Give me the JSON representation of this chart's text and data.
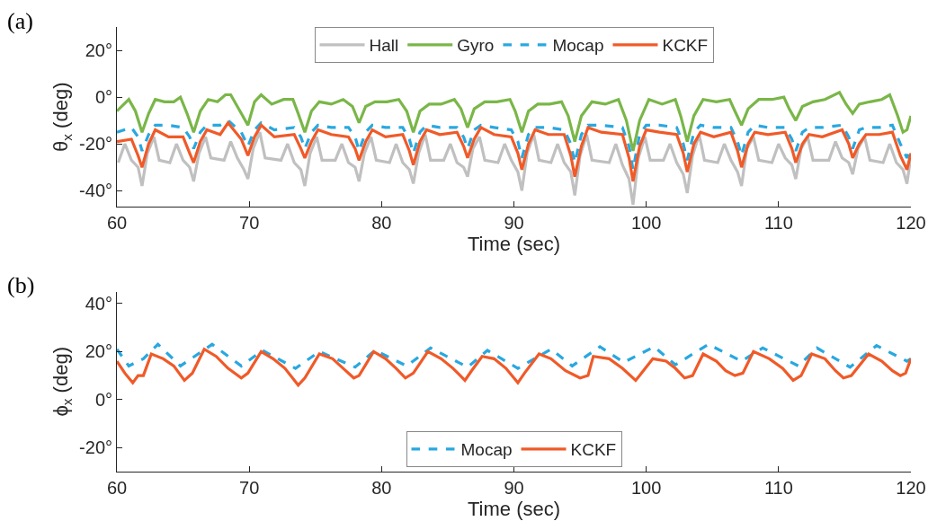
{
  "chart_data": [
    {
      "type": "line",
      "annotations": [
        "(a)"
      ],
      "xlabel": "Time (sec)",
      "ylabel": "θ$_{x}$ (deg)",
      "xlim": [
        60,
        120
      ],
      "ylim": [
        -47,
        30
      ],
      "xticks": [
        60,
        70,
        80,
        90,
        100,
        110,
        120
      ],
      "yticks": [
        {
          "value": -40,
          "label": "-40°"
        },
        {
          "value": -20,
          "label": "-20°"
        },
        {
          "value": 0,
          "label": "0°"
        },
        {
          "value": 20,
          "label": "20°"
        }
      ],
      "legend": "top",
      "marker": "none",
      "series": [
        {
          "name": "Hall",
          "color": "#c0c0c0",
          "line_style": "solid",
          "x": [
            60.1,
            60.6,
            61.1,
            61.6,
            61.9,
            62.3,
            62.8,
            63.2,
            64.0,
            64.5,
            65.0,
            65.5,
            65.8,
            66.2,
            66.7,
            67.1,
            68.1,
            68.6,
            69.1,
            69.6,
            69.9,
            70.3,
            70.8,
            71.2,
            72.4,
            72.9,
            73.4,
            73.9,
            74.2,
            74.6,
            75.1,
            75.5,
            76.5,
            77.0,
            77.5,
            78.0,
            78.3,
            78.7,
            79.2,
            79.6,
            80.6,
            81.1,
            81.6,
            82.1,
            82.4,
            82.8,
            83.3,
            83.7,
            84.7,
            85.2,
            85.7,
            86.2,
            86.5,
            86.9,
            87.4,
            87.8,
            88.8,
            89.3,
            89.8,
            90.3,
            90.6,
            91.0,
            91.5,
            91.9,
            92.8,
            93.3,
            93.8,
            94.3,
            94.6,
            95.0,
            95.5,
            95.9,
            97.2,
            97.7,
            98.2,
            98.7,
            99.0,
            99.4,
            99.9,
            100.3,
            101.3,
            101.8,
            102.3,
            102.8,
            103.1,
            103.5,
            104.0,
            104.4,
            105.4,
            105.9,
            106.4,
            106.9,
            107.2,
            107.6,
            108.1,
            108.5,
            109.5,
            110.0,
            110.5,
            111.0,
            111.3,
            111.7,
            112.2,
            112.6,
            113.8,
            114.3,
            114.8,
            115.3,
            115.6,
            116.0,
            116.5,
            116.9,
            117.9,
            118.4,
            118.9,
            119.4,
            119.7,
            120.0
          ],
          "values": [
            -28,
            -20,
            -27,
            -30,
            -38,
            -24,
            -17,
            -27,
            -28,
            -20,
            -27,
            -30,
            -36,
            -24,
            -17,
            -26,
            -27,
            -19,
            -26,
            -31,
            -35,
            -22,
            -15,
            -26,
            -27,
            -20,
            -28,
            -31,
            -38,
            -24,
            -17,
            -27,
            -27,
            -20,
            -28,
            -30,
            -36,
            -24,
            -17,
            -27,
            -28,
            -20,
            -28,
            -31,
            -37,
            -24,
            -16,
            -27,
            -27,
            -20,
            -28,
            -30,
            -34,
            -22,
            -17,
            -27,
            -28,
            -20,
            -27,
            -32,
            -40,
            -24,
            -16,
            -27,
            -28,
            -20,
            -28,
            -32,
            -42,
            -25,
            -16,
            -27,
            -28,
            -20,
            -29,
            -35,
            -46,
            -26,
            -17,
            -27,
            -27,
            -20,
            -28,
            -33,
            -41,
            -25,
            -16,
            -27,
            -28,
            -20,
            -27,
            -32,
            -38,
            -22,
            -17,
            -27,
            -28,
            -20,
            -26,
            -29,
            -35,
            -22,
            -17,
            -27,
            -27,
            -19,
            -26,
            -28,
            -33,
            -22,
            -17,
            -27,
            -28,
            -20,
            -28,
            -31,
            -37,
            -25
          ]
        },
        {
          "name": "Gyro",
          "color": "#7ab648",
          "line_style": "solid",
          "x": [
            60,
            60.9,
            61.4,
            61.9,
            62.4,
            62.9,
            63.6,
            64.3,
            64.8,
            65.3,
            65.8,
            66.3,
            66.9,
            67.6,
            68.2,
            68.6,
            69.4,
            69.9,
            70.4,
            70.9,
            71.7,
            72.6,
            73.3,
            73.7,
            74.2,
            74.7,
            75.3,
            76.2,
            77.1,
            77.8,
            78.3,
            78.8,
            79.5,
            80.4,
            81.3,
            81.9,
            82.4,
            82.9,
            83.6,
            84.5,
            85.5,
            86.0,
            86.5,
            87.0,
            87.8,
            88.7,
            89.7,
            90.1,
            90.6,
            91.1,
            91.8,
            92.7,
            93.6,
            94.1,
            94.6,
            95.1,
            95.9,
            96.9,
            97.9,
            98.5,
            99.0,
            99.5,
            100.2,
            101.2,
            102.2,
            102.6,
            103.1,
            103.6,
            104.3,
            105.3,
            106.3,
            106.7,
            107.2,
            107.7,
            108.5,
            109.5,
            110.4,
            110.8,
            111.3,
            111.8,
            112.6,
            113.5,
            114.6,
            115.1,
            115.6,
            116.1,
            116.9,
            117.8,
            118.4,
            119.0,
            119.4,
            119.7,
            120.0
          ],
          "values": [
            -6,
            -1,
            -6,
            -15,
            -7,
            -1,
            -2,
            -2,
            0,
            -7,
            -15,
            -6,
            -1,
            -2,
            1,
            1,
            -7,
            -12,
            -2,
            1,
            -3,
            -1,
            -1,
            -7,
            -15,
            -6,
            -2,
            -3,
            -1,
            -4,
            -11,
            -4,
            -2,
            -2,
            -1,
            -6,
            -15,
            -6,
            -3,
            -3,
            -1,
            -5,
            -13,
            -5,
            -2,
            -2,
            -1,
            -6,
            -15,
            -6,
            -3,
            -3,
            -2,
            -8,
            -19,
            -8,
            -2,
            -3,
            -1,
            -10,
            -23,
            -10,
            -1,
            -3,
            -1,
            -8,
            -19,
            -8,
            -1,
            -2,
            -1,
            -6,
            -12,
            -5,
            -1,
            -1,
            0,
            -5,
            -10,
            -4,
            -2,
            -1,
            2,
            -3,
            -7,
            -3,
            -2,
            -1,
            1,
            -8,
            -15,
            -14,
            -8
          ]
        },
        {
          "name": "Mocap",
          "color": "#29a8e0",
          "line_style": "dashed",
          "x": [
            60,
            61.1,
            61.6,
            61.9,
            62.4,
            62.9,
            63.9,
            65.0,
            65.5,
            65.8,
            66.3,
            66.8,
            67.8,
            68.4,
            69.4,
            69.9,
            70.4,
            70.9,
            71.9,
            73.4,
            73.9,
            74.2,
            74.7,
            75.2,
            76.2,
            77.5,
            78.0,
            78.3,
            78.8,
            79.3,
            80.3,
            81.6,
            82.1,
            82.4,
            82.9,
            83.4,
            84.4,
            85.7,
            86.2,
            86.5,
            87.0,
            87.5,
            88.5,
            89.8,
            90.3,
            90.6,
            91.1,
            91.6,
            92.6,
            93.8,
            94.3,
            94.6,
            95.1,
            95.6,
            96.6,
            98.2,
            98.7,
            99.0,
            99.5,
            100.0,
            101.0,
            102.3,
            102.8,
            103.1,
            103.6,
            104.1,
            105.1,
            106.4,
            106.9,
            107.2,
            107.7,
            108.2,
            109.2,
            110.5,
            111.0,
            111.3,
            111.8,
            112.3,
            113.3,
            114.8,
            115.3,
            115.6,
            116.1,
            116.6,
            117.6,
            118.6,
            119.2,
            119.7,
            120.0
          ],
          "values": [
            -15,
            -13,
            -17,
            -23,
            -16,
            -12,
            -12,
            -13,
            -17,
            -22,
            -15,
            -12,
            -12,
            -10,
            -15,
            -21,
            -14,
            -11,
            -14,
            -13,
            -17,
            -22,
            -15,
            -12,
            -13,
            -13,
            -17,
            -23,
            -15,
            -12,
            -13,
            -13,
            -18,
            -24,
            -15,
            -12,
            -13,
            -13,
            -17,
            -22,
            -14,
            -12,
            -13,
            -14,
            -19,
            -26,
            -16,
            -13,
            -13,
            -14,
            -20,
            -28,
            -16,
            -12,
            -12,
            -13,
            -21,
            -31,
            -16,
            -12,
            -12,
            -13,
            -20,
            -27,
            -15,
            -12,
            -13,
            -13,
            -19,
            -25,
            -15,
            -12,
            -13,
            -13,
            -18,
            -23,
            -15,
            -13,
            -13,
            -12,
            -17,
            -22,
            -14,
            -13,
            -13,
            -12,
            -20,
            -26,
            -22
          ]
        },
        {
          "name": "KCKF",
          "color": "#f05a28",
          "line_style": "solid",
          "x": [
            60,
            61.1,
            61.6,
            61.9,
            62.4,
            62.9,
            63.9,
            65.0,
            65.5,
            65.8,
            66.3,
            66.8,
            67.8,
            68.4,
            69.4,
            69.9,
            70.4,
            70.9,
            71.9,
            73.4,
            73.9,
            74.2,
            74.7,
            75.2,
            76.2,
            77.5,
            78.0,
            78.3,
            78.8,
            79.3,
            80.3,
            81.6,
            82.1,
            82.4,
            82.9,
            83.4,
            84.4,
            85.7,
            86.2,
            86.5,
            87.0,
            87.5,
            88.5,
            89.8,
            90.3,
            90.6,
            91.1,
            91.6,
            92.6,
            93.8,
            94.3,
            94.6,
            95.1,
            95.6,
            96.6,
            98.2,
            98.7,
            99.0,
            99.5,
            100.0,
            101.0,
            102.3,
            102.8,
            103.1,
            103.6,
            104.1,
            105.1,
            106.4,
            106.9,
            107.2,
            107.7,
            108.2,
            109.2,
            110.5,
            111.0,
            111.3,
            111.8,
            112.3,
            113.3,
            114.8,
            115.3,
            115.6,
            116.1,
            116.6,
            117.6,
            118.6,
            119.2,
            119.7,
            120.0
          ],
          "values": [
            -19,
            -18,
            -25,
            -30,
            -20,
            -14,
            -17,
            -17,
            -24,
            -28,
            -19,
            -14,
            -16,
            -11,
            -18,
            -25,
            -17,
            -12,
            -17,
            -16,
            -22,
            -26,
            -19,
            -14,
            -16,
            -17,
            -22,
            -27,
            -19,
            -14,
            -17,
            -16,
            -23,
            -29,
            -19,
            -14,
            -16,
            -15,
            -21,
            -26,
            -18,
            -13,
            -16,
            -17,
            -24,
            -31,
            -20,
            -14,
            -16,
            -16,
            -25,
            -34,
            -21,
            -13,
            -15,
            -16,
            -26,
            -36,
            -21,
            -14,
            -15,
            -16,
            -24,
            -32,
            -20,
            -15,
            -17,
            -15,
            -23,
            -30,
            -20,
            -15,
            -16,
            -15,
            -22,
            -28,
            -20,
            -16,
            -17,
            -14,
            -20,
            -26,
            -20,
            -16,
            -16,
            -15,
            -25,
            -31,
            -24
          ]
        }
      ]
    },
    {
      "type": "line",
      "annotations": [
        "(b)"
      ],
      "xlabel": "Time (sec)",
      "ylabel": "ϕ$_{x}$ (deg)",
      "xlim": [
        60,
        120
      ],
      "ylim": [
        -30,
        45
      ],
      "xticks": [
        60,
        70,
        80,
        90,
        100,
        110,
        120
      ],
      "yticks": [
        {
          "value": -20,
          "label": "-20°"
        },
        {
          "value": 0,
          "label": "0°"
        },
        {
          "value": 20,
          "label": "20°"
        },
        {
          "value": 40,
          "label": "40°"
        }
      ],
      "legend": "bottom",
      "marker": "none",
      "series": [
        {
          "name": "Mocap",
          "color": "#29a8e0",
          "line_style": "dashed",
          "x": [
            60,
            60.9,
            62.0,
            63.1,
            64.8,
            67.2,
            69.4,
            71.0,
            73.5,
            75.3,
            78.0,
            79.5,
            81.9,
            83.7,
            86.5,
            88.0,
            90.3,
            92.8,
            94.4,
            96.5,
            98.3,
            100.6,
            102.2,
            104.7,
            107.2,
            108.8,
            111.5,
            112.9,
            115.4,
            117.4,
            119.7,
            120.0
          ],
          "values": [
            21,
            14,
            17,
            23,
            14,
            23,
            14,
            20.5,
            13,
            20,
            13.5,
            20.5,
            14,
            21.5,
            13.5,
            20.5,
            13,
            21,
            14,
            22,
            15.5,
            22,
            14.5,
            23,
            16,
            21.5,
            14,
            21.5,
            13.5,
            22.5,
            16,
            17
          ]
        },
        {
          "name": "KCKF",
          "color": "#f05a28",
          "line_style": "solid",
          "x": [
            60,
            60.6,
            61.2,
            61.6,
            62.0,
            62.6,
            63.5,
            64.3,
            65.1,
            65.7,
            66.6,
            67.5,
            68.4,
            69.4,
            69.9,
            70.9,
            71.8,
            72.7,
            73.7,
            74.2,
            75.3,
            76.3,
            77.1,
            77.9,
            78.3,
            79.4,
            80.3,
            81.1,
            81.8,
            82.4,
            83.5,
            84.5,
            85.4,
            86.3,
            86.8,
            87.6,
            88.5,
            89.4,
            90.3,
            90.8,
            91.9,
            92.8,
            93.9,
            95.0,
            95.6,
            96.0,
            97.2,
            98.2,
            99.2,
            99.5,
            100.5,
            101.5,
            102.2,
            102.9,
            103.5,
            104.3,
            105.3,
            106.0,
            106.7,
            107.3,
            108.1,
            109.3,
            110.3,
            111.1,
            111.7,
            112.5,
            113.5,
            114.3,
            114.9,
            115.5,
            116.8,
            117.8,
            118.6,
            119.2,
            119.6,
            120.0
          ],
          "values": [
            16,
            11,
            7,
            10,
            10,
            19,
            17,
            14,
            8,
            11,
            21,
            18,
            13,
            9,
            11,
            20,
            17,
            13,
            6,
            9,
            19,
            17,
            13,
            9,
            10,
            20,
            17,
            13,
            9,
            11,
            20,
            17,
            13,
            8,
            12,
            18,
            17,
            13,
            7,
            11,
            19,
            17,
            12,
            9,
            10,
            18,
            17,
            13,
            8,
            10,
            17,
            16,
            13,
            9,
            10,
            19,
            16,
            12,
            10,
            11,
            20,
            17,
            13,
            8,
            10,
            19,
            17,
            12,
            9,
            10,
            19,
            16,
            12,
            10,
            11,
            17
          ]
        }
      ]
    }
  ]
}
